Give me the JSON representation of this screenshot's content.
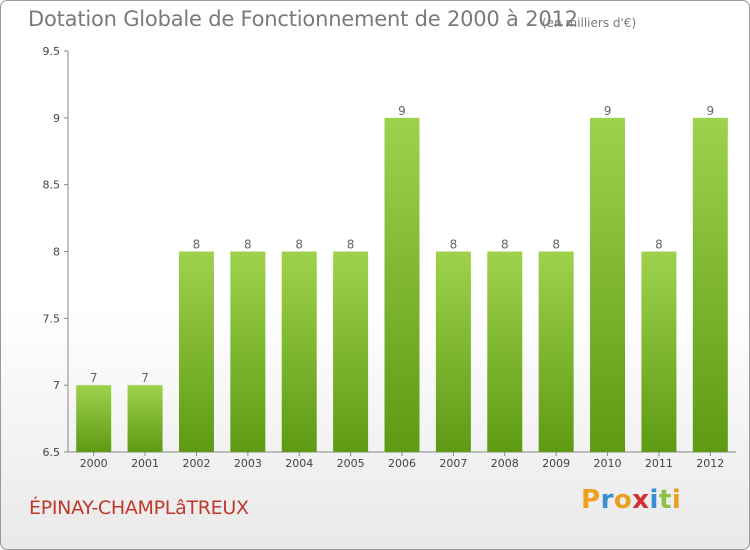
{
  "title": "Dotation Globale de Fonctionnement de 2000 à 2012",
  "unit_note": "(en milliers d'€)",
  "city": "ÉPINAY-CHAMPLâTREUX",
  "logo": {
    "letters": [
      "P",
      "r",
      "o",
      "x",
      "i",
      "t",
      "i"
    ],
    "colors": [
      "#f0a020",
      "#3a8fd0",
      "#e8a020",
      "#d03030",
      "#3a8fd0",
      "#8bc34a",
      "#e8a020"
    ]
  },
  "colors": {
    "bar_top": "#9ed24c",
    "bar_bottom": "#5e9a14",
    "axis": "#888888",
    "grid": "#c8c8c8"
  },
  "chart_data": {
    "type": "bar",
    "categories": [
      "2000",
      "2001",
      "2002",
      "2003",
      "2004",
      "2005",
      "2006",
      "2007",
      "2008",
      "2009",
      "2010",
      "2011",
      "2012"
    ],
    "values": [
      7,
      7,
      8,
      8,
      8,
      8,
      9,
      8,
      8,
      8,
      9,
      8,
      9
    ],
    "data_labels": [
      "7",
      "7",
      "8",
      "8",
      "8",
      "8",
      "9",
      "8",
      "8",
      "8",
      "9",
      "8",
      "9"
    ],
    "ylim": [
      6.5,
      9.5
    ],
    "yticks": [
      6.5,
      7,
      7.5,
      8,
      8.5,
      9,
      9.5
    ],
    "ytick_labels": [
      "6.5",
      "7",
      "7.5",
      "8",
      "8.5",
      "9",
      "9.5"
    ],
    "grid": false,
    "xlabel": "",
    "ylabel": ""
  }
}
